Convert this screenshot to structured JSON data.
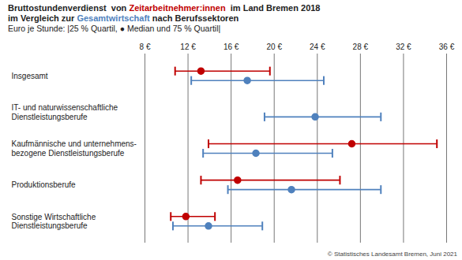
{
  "chart_data": {
    "type": "range_dot",
    "orientation": "horizontal",
    "title": "Bruttostundenverdienst  von Zeitarbeitnehmer:innen  im Land Bremen 2018",
    "subtitle": [
      "im Vergleich zur Gesamtwirtschaft nach Berufssektoren",
      "Euro je Stunde: |25 % Quartil, ● Median und 75 % Quartil|"
    ],
    "caption": "© Statistisches Landesamt Bremen, Juni 2021",
    "categories": [
      "Insgesamt",
      "IT- und naturwissenschaftliche\nDienstleistungsberufe",
      "Kaufmännische und unternehmens-\nbezogene Dienstleistungsberufe",
      "Produktionsberufe",
      "Sonstige Wirtschaftliche\nDienstleistungsberufe"
    ],
    "series": [
      {
        "name": "Zeitarbeitnehmer:innen",
        "color": "#c00000",
        "marker": "circle",
        "q25": [
          10.8,
          null,
          13.9,
          13.2,
          10.4
        ],
        "values": [
          13.2,
          null,
          27.2,
          16.6,
          11.8
        ],
        "q75": [
          19.6,
          null,
          35.1,
          26.1,
          14.5
        ]
      },
      {
        "name": "Gesamtwirtschaft",
        "color": "#4f81bd",
        "marker": "circle",
        "q25": [
          12.3,
          19.1,
          13.4,
          15.7,
          10.6
        ],
        "values": [
          17.5,
          23.8,
          18.3,
          21.6,
          13.9
        ],
        "q75": [
          24.6,
          29.9,
          25.4,
          29.9,
          18.9
        ]
      }
    ],
    "xlim": [
      8,
      36
    ],
    "xticks": [
      {
        "value": 8,
        "label": "8 €"
      },
      {
        "value": 12,
        "label": "12 €"
      },
      {
        "value": 16,
        "label": "16 €"
      },
      {
        "value": 20,
        "label": "20 €"
      },
      {
        "value": 24,
        "label": "24 €"
      },
      {
        "value": 28,
        "label": "28 €"
      },
      {
        "value": 32,
        "label": "32 €"
      },
      {
        "value": 36,
        "label": "36 €"
      }
    ],
    "grid": true
  }
}
